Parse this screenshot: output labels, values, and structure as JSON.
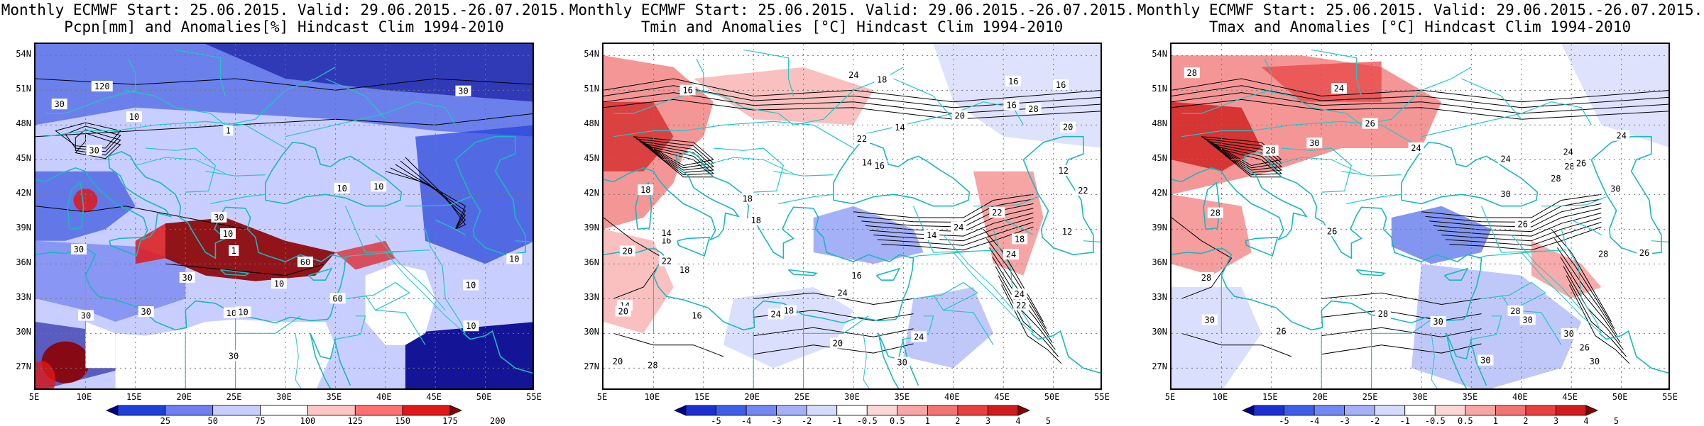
{
  "panels": [
    {
      "id": "pcpn",
      "title_line1": "Monthly ECMWF Start: 25.06.2015. Valid: 29.06.2015.-26.07.2015.",
      "title_line2": "Pcpn[mm] and Anomalies[%] Hindcast Clim 1994-2010",
      "colorbar_ticks": [
        "25",
        "50",
        "75",
        "100",
        "125",
        "150",
        "175",
        "200"
      ],
      "colorbar_colors": [
        "#00008b",
        "#1f3fd8",
        "#6f7ff0",
        "#c8ceff",
        "#ffffff",
        "#ffc4c4",
        "#ff7070",
        "#e01818",
        "#8b0000"
      ],
      "contour_labels": [
        "30",
        "30",
        "10",
        "30",
        "60",
        "120",
        "10",
        "10",
        "30",
        "30",
        "30",
        "10",
        "10",
        "60",
        "10",
        "30",
        "30",
        "10",
        "10",
        "10",
        "10",
        "1",
        "1",
        "30"
      ],
      "scheme": "precip"
    },
    {
      "id": "tmin",
      "title_line1": "Monthly ECMWF Start: 25.06.2015. Valid: 29.06.2015.-26.07.2015.",
      "title_line2": "Tmin and Anomalies [°C] Hindcast Clim 1994-2010",
      "colorbar_ticks": [
        "-5",
        "-4",
        "-3",
        "-2",
        "-1",
        "-0.5",
        "0.5",
        "1",
        "2",
        "3",
        "4",
        "5"
      ],
      "colorbar_colors": [
        "#00008b",
        "#1c2fd0",
        "#3f5ee8",
        "#7387f2",
        "#a5b0f8",
        "#d6dbfd",
        "#ffffff",
        "#fdd6d6",
        "#f8a5a5",
        "#f27373",
        "#e83f3f",
        "#d01c1c",
        "#8b0000"
      ],
      "contour_labels": [
        "16",
        "18",
        "18",
        "14",
        "16",
        "18",
        "16",
        "16",
        "16",
        "14",
        "14",
        "12",
        "24",
        "20",
        "18",
        "24",
        "22",
        "22",
        "20",
        "16",
        "20",
        "14",
        "14",
        "16",
        "18",
        "12",
        "22",
        "24",
        "20",
        "28",
        "24",
        "24",
        "16",
        "18",
        "24",
        "20",
        "30",
        "28",
        "20",
        "18",
        "22",
        "22",
        "24"
      ],
      "scheme": "tmin"
    },
    {
      "id": "tmax",
      "title_line1": "Monthly ECMWF Start: 25.06.2015. Valid: 29.06.2015.-26.07.2015.",
      "title_line2": "Tmax and Anomalies [°C] Hindcast Clim 1994-2010",
      "colorbar_ticks": [
        "-5",
        "-4",
        "-3",
        "-2",
        "-1",
        "-0.5",
        "0.5",
        "1",
        "2",
        "3",
        "4",
        "5"
      ],
      "colorbar_colors": [
        "#00008b",
        "#1c2fd0",
        "#3f5ee8",
        "#7387f2",
        "#a5b0f8",
        "#d6dbfd",
        "#ffffff",
        "#fdd6d6",
        "#f8a5a5",
        "#f27373",
        "#e83f3f",
        "#d01c1c",
        "#8b0000"
      ],
      "contour_labels": [
        "24",
        "24",
        "24",
        "26",
        "28",
        "28",
        "30",
        "26",
        "26",
        "30",
        "28",
        "26",
        "30",
        "26",
        "28",
        "24",
        "28",
        "30",
        "28",
        "28",
        "30",
        "30",
        "30",
        "24",
        "28",
        "28",
        "30",
        "26",
        "26",
        "30"
      ],
      "scheme": "tmax"
    }
  ],
  "axes": {
    "lat_ticks": [
      "54N",
      "51N",
      "48N",
      "45N",
      "42N",
      "39N",
      "36N",
      "33N",
      "30N",
      "27N"
    ],
    "lon_ticks": [
      "5E",
      "10E",
      "15E",
      "20E",
      "25E",
      "30E",
      "35E",
      "40E",
      "45E",
      "50E",
      "55E"
    ],
    "lat_values": [
      54,
      51,
      48,
      45,
      42,
      39,
      36,
      33,
      30,
      27
    ],
    "lon_values": [
      5,
      10,
      15,
      20,
      25,
      30,
      35,
      40,
      45,
      50,
      55
    ],
    "lat_range": [
      25,
      55
    ],
    "lon_range": [
      5,
      55
    ]
  }
}
